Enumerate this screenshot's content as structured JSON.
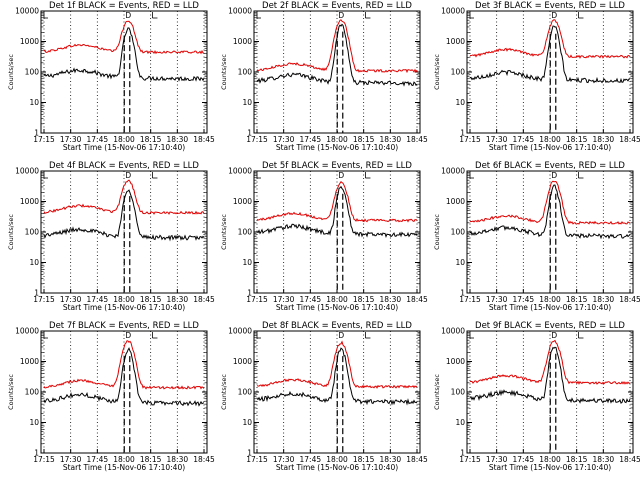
{
  "chart_data": [
    {
      "type": "line",
      "title": "Det 1f BLACK = Events, RED = LLD",
      "xlabel": "Start Time (15-Nov-06 17:10:40)",
      "ylabel": "Counts/sec",
      "x_ticks": [
        "17:15",
        "17:30",
        "17:45",
        "18:00",
        "18:15",
        "18:30",
        "18:45"
      ],
      "y_ticks": [
        "1",
        "10",
        "100",
        "1000",
        "10000"
      ],
      "ylim": [
        1,
        10000
      ],
      "y_scale": "log",
      "marker_labels": [
        "D",
        "E"
      ],
      "series": [
        {
          "color": "#000000",
          "peak": 2500,
          "base": 70
        },
        {
          "color": "#e00000",
          "peak": 4500,
          "base": 450
        }
      ]
    },
    {
      "type": "line",
      "title": "Det 2f BLACK = Events, RED = LLD",
      "xlabel": "Start Time (15-Nov-06 17:10:40)",
      "ylabel": "Counts/sec",
      "x_ticks": [
        "17:15",
        "17:30",
        "17:45",
        "18:00",
        "18:15",
        "18:30",
        "18:45"
      ],
      "y_ticks": [
        "1",
        "10",
        "100",
        "1000",
        "10000"
      ],
      "ylim": [
        1,
        10000
      ],
      "y_scale": "log",
      "marker_labels": [
        "D",
        "E"
      ],
      "series": [
        {
          "color": "#000000",
          "peak": 3500,
          "base": 50
        },
        {
          "color": "#e00000",
          "peak": 5000,
          "base": 110
        }
      ]
    },
    {
      "type": "line",
      "title": "Det 3f BLACK = Events, RED = LLD",
      "xlabel": "Start Time (15-Nov-06 17:10:40)",
      "ylabel": "Counts/sec",
      "x_ticks": [
        "17:15",
        "17:30",
        "17:45",
        "18:00",
        "18:15",
        "18:30",
        "18:45"
      ],
      "y_ticks": [
        "1",
        "10",
        "100",
        "1000",
        "10000"
      ],
      "ylim": [
        1,
        10000
      ],
      "y_scale": "log",
      "marker_labels": [
        "D",
        "E"
      ],
      "series": [
        {
          "color": "#000000",
          "peak": 3000,
          "base": 60
        },
        {
          "color": "#e00000",
          "peak": 4500,
          "base": 320
        }
      ]
    },
    {
      "type": "line",
      "title": "Det 4f BLACK = Events, RED = LLD",
      "xlabel": "Start Time (15-Nov-06 17:10:40)",
      "ylabel": "Counts/sec",
      "x_ticks": [
        "17:15",
        "17:30",
        "17:45",
        "18:00",
        "18:15",
        "18:30",
        "18:45"
      ],
      "y_ticks": [
        "1",
        "10",
        "100",
        "1000",
        "10000"
      ],
      "ylim": [
        1,
        10000
      ],
      "y_scale": "log",
      "marker_labels": [
        "D",
        "E"
      ],
      "series": [
        {
          "color": "#000000",
          "peak": 2500,
          "base": 75
        },
        {
          "color": "#e00000",
          "peak": 4500,
          "base": 430
        }
      ]
    },
    {
      "type": "line",
      "title": "Det 5f BLACK = Events, RED = LLD",
      "xlabel": "Start Time (15-Nov-06 17:10:40)",
      "ylabel": "Counts/sec",
      "x_ticks": [
        "17:15",
        "17:30",
        "17:45",
        "18:00",
        "18:15",
        "18:30",
        "18:45"
      ],
      "y_ticks": [
        "1",
        "10",
        "100",
        "1000",
        "10000"
      ],
      "ylim": [
        1,
        10000
      ],
      "y_scale": "log",
      "marker_labels": [
        "D",
        "E"
      ],
      "series": [
        {
          "color": "#000000",
          "peak": 3000,
          "base": 95
        },
        {
          "color": "#e00000",
          "peak": 4000,
          "base": 240
        }
      ]
    },
    {
      "type": "line",
      "title": "Det 6f BLACK = Events, RED = LLD",
      "xlabel": "Start Time (15-Nov-06 17:10:40)",
      "ylabel": "Counts/sec",
      "x_ticks": [
        "17:15",
        "17:30",
        "17:45",
        "18:00",
        "18:15",
        "18:30",
        "18:45"
      ],
      "y_ticks": [
        "1",
        "10",
        "100",
        "1000",
        "10000"
      ],
      "ylim": [
        1,
        10000
      ],
      "y_scale": "log",
      "marker_labels": [
        "D",
        "E"
      ],
      "series": [
        {
          "color": "#000000",
          "peak": 3000,
          "base": 85
        },
        {
          "color": "#e00000",
          "peak": 4500,
          "base": 200
        }
      ]
    },
    {
      "type": "line",
      "title": "Det 7f BLACK = Events, RED = LLD",
      "xlabel": "Start Time (15-Nov-06 17:10:40)",
      "ylabel": "Counts/sec",
      "x_ticks": [
        "17:15",
        "17:30",
        "17:45",
        "18:00",
        "18:15",
        "18:30",
        "18:45"
      ],
      "y_ticks": [
        "1",
        "10",
        "100",
        "1000",
        "10000"
      ],
      "ylim": [
        1,
        10000
      ],
      "y_scale": "log",
      "marker_labels": [
        "D",
        "E"
      ],
      "series": [
        {
          "color": "#000000",
          "peak": 2500,
          "base": 50
        },
        {
          "color": "#e00000",
          "peak": 4500,
          "base": 140
        }
      ]
    },
    {
      "type": "line",
      "title": "Det 8f BLACK = Events, RED = LLD",
      "xlabel": "Start Time (15-Nov-06 17:10:40)",
      "ylabel": "Counts/sec",
      "x_ticks": [
        "17:15",
        "17:30",
        "17:45",
        "18:00",
        "18:15",
        "18:30",
        "18:45"
      ],
      "y_ticks": [
        "1",
        "10",
        "100",
        "1000",
        "10000"
      ],
      "ylim": [
        1,
        10000
      ],
      "y_scale": "log",
      "marker_labels": [
        "D",
        "E"
      ],
      "series": [
        {
          "color": "#000000",
          "peak": 2500,
          "base": 55
        },
        {
          "color": "#e00000",
          "peak": 4000,
          "base": 150
        }
      ]
    },
    {
      "type": "line",
      "title": "Det 9f BLACK = Events, RED = LLD",
      "xlabel": "Start Time (15-Nov-06 17:10:40)",
      "ylabel": "Counts/sec",
      "x_ticks": [
        "17:15",
        "17:30",
        "17:45",
        "18:00",
        "18:15",
        "18:30",
        "18:45"
      ],
      "y_ticks": [
        "1",
        "10",
        "100",
        "1000",
        "10000"
      ],
      "ylim": [
        1,
        10000
      ],
      "y_scale": "log",
      "marker_labels": [
        "D",
        "E"
      ],
      "series": [
        {
          "color": "#000000",
          "peak": 3000,
          "base": 60
        },
        {
          "color": "#e00000",
          "peak": 4500,
          "base": 200
        }
      ]
    }
  ]
}
